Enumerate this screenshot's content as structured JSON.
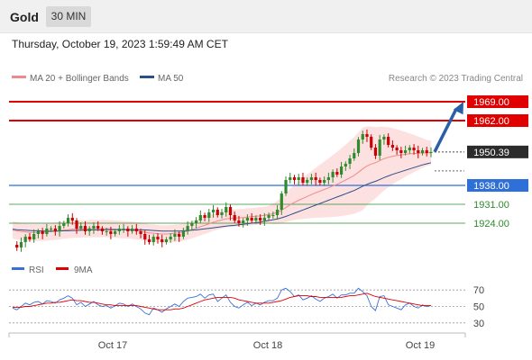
{
  "header": {
    "symbol": "Gold",
    "timeframe": "30 MIN",
    "datetime": "Thursday, October 19, 2023 1:59:49 AM CET"
  },
  "legend": {
    "ma20_label": "MA 20 + Bollinger Bands",
    "ma50_label": "MA 50",
    "credit": "Research © 2023 Trading Central",
    "rsi_label": "RSI",
    "ma9_label": "9MA"
  },
  "colors": {
    "ma20": "#f08a8a",
    "band_fill": "#fde0e0",
    "ma50": "#2b4f8a",
    "resistance": "#e00000",
    "current_price": "#222222",
    "pivot": "#2f6fd8",
    "support": "#2e8b2e",
    "arrow": "#2a5fa8",
    "candle_up": "#2e8b2e",
    "candle_down": "#cc0000",
    "rsi": "#3a6fd8",
    "rsi_ma": "#e00000"
  },
  "chart_data": {
    "type": "candlestick",
    "timeframe": "30 MIN",
    "x_tick_labels": [
      "Oct 17",
      "Oct 18",
      "Oct 19"
    ],
    "y_range": [
      1910,
      1975
    ],
    "levels": [
      {
        "label": "1969.00",
        "value": 1969.0,
        "kind": "resistance"
      },
      {
        "label": "1962.00",
        "value": 1962.0,
        "kind": "resistance"
      },
      {
        "label": "1950.39",
        "value": 1950.39,
        "kind": "current"
      },
      {
        "label": "1938.00",
        "value": 1938.0,
        "kind": "pivot"
      },
      {
        "label": "1931.00",
        "value": 1931.0,
        "kind": "support"
      },
      {
        "label": "1924.00",
        "value": 1924.0,
        "kind": "support"
      }
    ],
    "forecast_arrow": {
      "from": 1950.39,
      "to": 1969.0,
      "direction": "up"
    },
    "close_series": [
      1916,
      1915,
      1917,
      1919,
      1918,
      1920,
      1921,
      1920,
      1922,
      1922,
      1921,
      1923,
      1924,
      1926,
      1925,
      1922,
      1923,
      1921,
      1922,
      1923,
      1922,
      1921,
      1921,
      1920,
      1921,
      1922,
      1922,
      1921,
      1922,
      1921,
      1920,
      1918,
      1917,
      1919,
      1918,
      1917,
      1918,
      1919,
      1920,
      1919,
      1921,
      1923,
      1924,
      1925,
      1927,
      1926,
      1928,
      1929,
      1927,
      1928,
      1930,
      1927,
      1925,
      1924,
      1925,
      1926,
      1925,
      1926,
      1925,
      1926,
      1927,
      1927,
      1929,
      1935,
      1940,
      1941,
      1940,
      1941,
      1939,
      1940,
      1941,
      1940,
      1939,
      1940,
      1941,
      1943,
      1942,
      1945,
      1946,
      1948,
      1950,
      1955,
      1957,
      1956,
      1952,
      1949,
      1955,
      1956,
      1953,
      1952,
      1951,
      1950,
      1951,
      1952,
      1951,
      1950,
      1951,
      1950,
      1950.39
    ],
    "ma20_series": [
      1921.5,
      1921.2,
      1920.9,
      1920.8,
      1920.6,
      1920.6,
      1920.6,
      1920.6,
      1920.7,
      1920.9,
      1921,
      1921.2,
      1921.4,
      1921.6,
      1921.8,
      1921.8,
      1921.9,
      1921.9,
      1922,
      1922,
      1922,
      1922,
      1922,
      1921.9,
      1921.8,
      1921.7,
      1921.6,
      1921.5,
      1921.4,
      1921.2,
      1921,
      1920.7,
      1920.4,
      1920.3,
      1920.1,
      1920,
      1920,
      1920.1,
      1920.3,
      1920.4,
      1920.7,
      1921.1,
      1921.6,
      1922.1,
      1922.7,
      1923.2,
      1923.8,
      1924.4,
      1924.8,
      1925.2,
      1925.6,
      1925.8,
      1925.9,
      1926,
      1926.1,
      1926.3,
      1926.4,
      1926.6,
      1926.7,
      1926.9,
      1927.2,
      1927.5,
      1928,
      1928.8,
      1929.8,
      1930.8,
      1931.7,
      1932.5,
      1933.2,
      1933.9,
      1934.6,
      1935.3,
      1935.9,
      1936.5,
      1937.1,
      1937.8,
      1938.4,
      1939.2,
      1940,
      1940.8,
      1941.7,
      1942.9,
      1944.1,
      1945.2,
      1945.9,
      1946.4,
      1947.2,
      1947.9,
      1948.4,
      1948.8,
      1949.1,
      1949.3,
      1949.5,
      1949.7,
      1949.8,
      1949.9,
      1950,
      1950,
      1950.1
    ],
    "ma50_series": [
      1921.8,
      1921.6,
      1921.5,
      1921.4,
      1921.3,
      1921.2,
      1921.2,
      1921.1,
      1921.1,
      1921.1,
      1921.1,
      1921.1,
      1921.2,
      1921.2,
      1921.3,
      1921.3,
      1921.4,
      1921.4,
      1921.5,
      1921.5,
      1921.5,
      1921.5,
      1921.6,
      1921.6,
      1921.6,
      1921.6,
      1921.6,
      1921.6,
      1921.6,
      1921.6,
      1921.6,
      1921.5,
      1921.4,
      1921.3,
      1921.2,
      1921.1,
      1921.1,
      1921.1,
      1921.1,
      1921.1,
      1921.2,
      1921.3,
      1921.4,
      1921.5,
      1921.7,
      1921.9,
      1922.1,
      1922.3,
      1922.5,
      1922.7,
      1922.9,
      1923.1,
      1923.2,
      1923.4,
      1923.6,
      1923.8,
      1924,
      1924.2,
      1924.4,
      1924.7,
      1925,
      1925.3,
      1925.6,
      1926,
      1926.5,
      1927.1,
      1927.7,
      1928.3,
      1928.9,
      1929.5,
      1930.1,
      1930.7,
      1931.3,
      1931.9,
      1932.5,
      1933.1,
      1933.7,
      1934.3,
      1934.9,
      1935.5,
      1936.1,
      1936.9,
      1937.7,
      1938.4,
      1939,
      1939.5,
      1940.2,
      1940.9,
      1941.5,
      1942.1,
      1942.6,
      1943.1,
      1943.6,
      1944.1,
      1944.6,
      1945.1,
      1945.6,
      1946,
      1946.4
    ],
    "rsi": {
      "y_ticks": [
        30,
        50,
        70
      ],
      "rsi_series": [
        48,
        46,
        50,
        54,
        52,
        55,
        56,
        53,
        57,
        56,
        54,
        58,
        60,
        63,
        60,
        52,
        55,
        50,
        53,
        56,
        52,
        50,
        51,
        48,
        51,
        54,
        53,
        50,
        53,
        50,
        47,
        42,
        40,
        48,
        46,
        43,
        47,
        50,
        53,
        50,
        56,
        60,
        61,
        62,
        65,
        60,
        64,
        65,
        56,
        60,
        64,
        55,
        50,
        48,
        52,
        55,
        51,
        54,
        52,
        55,
        57,
        57,
        60,
        70,
        72,
        68,
        62,
        64,
        58,
        60,
        63,
        59,
        56,
        60,
        62,
        65,
        60,
        64,
        64,
        66,
        66,
        72,
        68,
        63,
        50,
        45,
        62,
        63,
        52,
        50,
        48,
        46,
        52,
        54,
        50,
        48,
        52,
        50,
        51
      ],
      "rsi_ma_series": [
        49,
        49,
        49,
        50,
        50,
        51,
        52,
        53,
        54,
        54,
        55,
        55,
        56,
        57,
        58,
        57,
        57,
        56,
        55,
        55,
        54,
        53,
        52,
        52,
        51,
        51,
        51,
        51,
        51,
        51,
        50,
        49,
        48,
        47,
        46,
        46,
        46,
        46,
        47,
        47,
        48,
        50,
        52,
        54,
        56,
        58,
        59,
        60,
        61,
        61,
        61,
        61,
        60,
        58,
        57,
        56,
        55,
        54,
        54,
        54,
        54,
        55,
        56,
        57,
        59,
        61,
        62,
        63,
        63,
        63,
        62,
        62,
        61,
        61,
        61,
        61,
        61,
        61,
        62,
        63,
        63,
        64,
        65,
        66,
        64,
        62,
        61,
        60,
        59,
        58,
        57,
        56,
        55,
        54,
        53,
        52,
        51,
        51,
        51
      ]
    }
  }
}
